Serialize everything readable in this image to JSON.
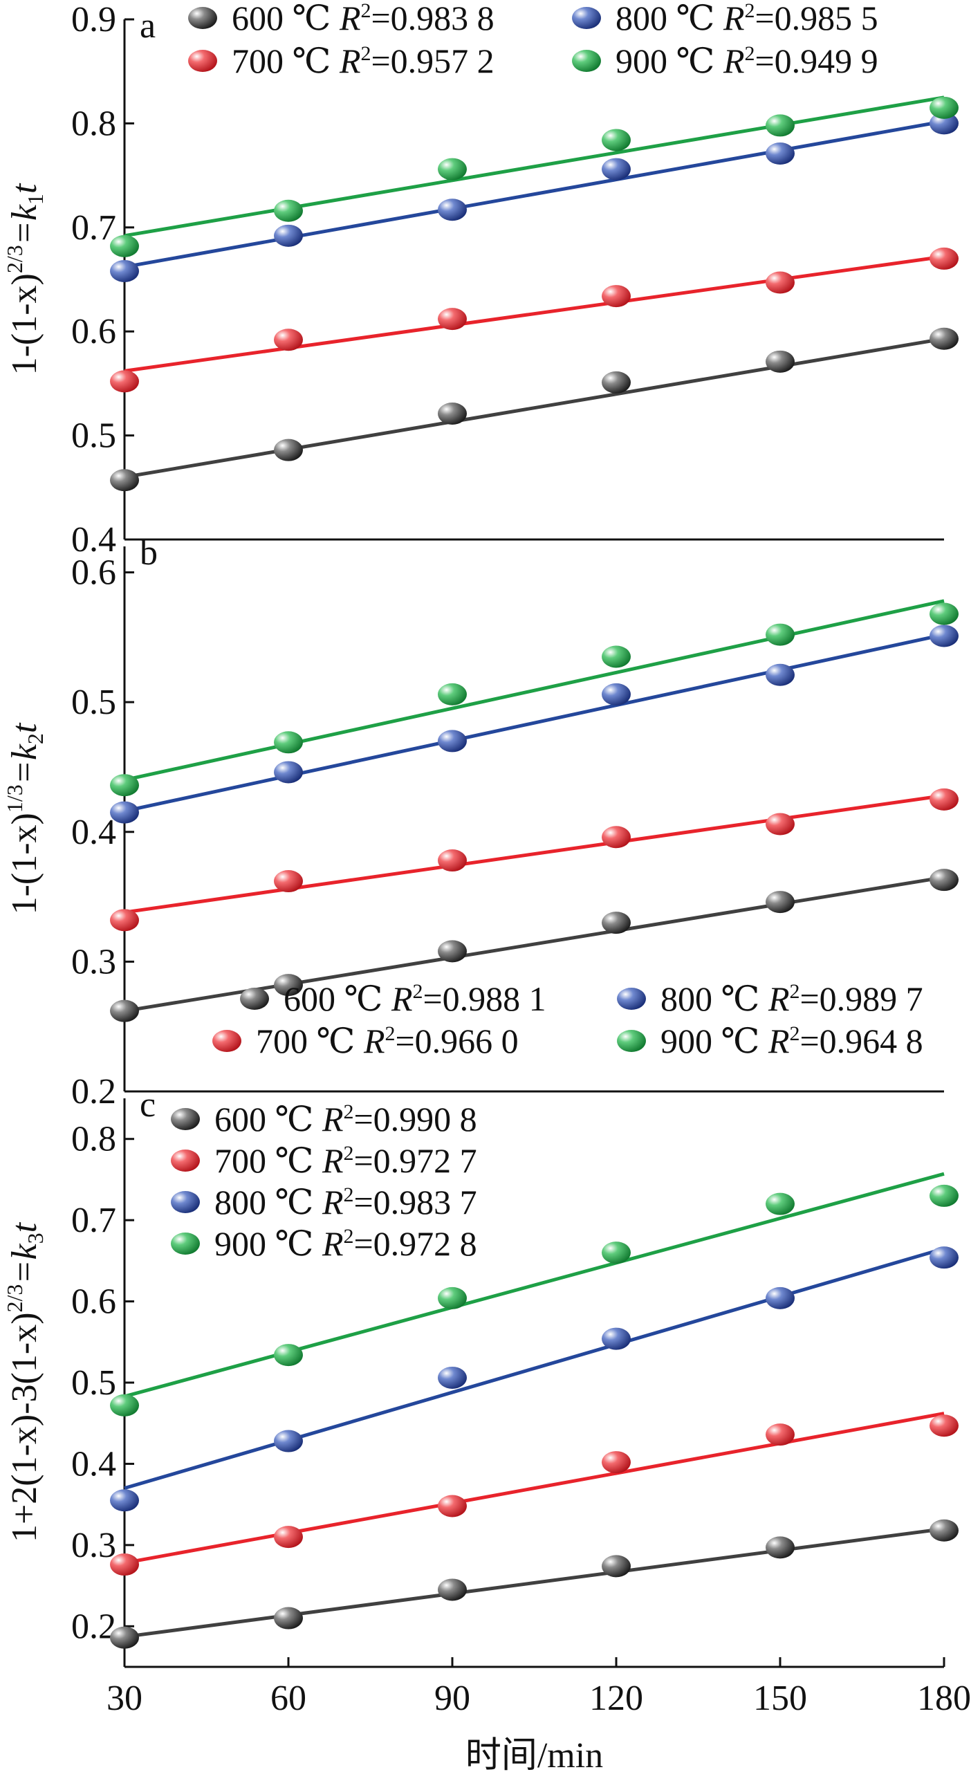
{
  "chart_data": {
    "type": "scatter",
    "xlabel": "时间/min",
    "x": [
      30,
      60,
      90,
      120,
      150,
      180
    ],
    "xticks": [
      "30",
      "60",
      "90",
      "120",
      "150",
      "180"
    ],
    "xlim": [
      30,
      180
    ],
    "colors": {
      "600": "#404040",
      "700": "#e8232b",
      "800": "#24479b",
      "900": "#1ea046"
    },
    "legend_fragments": {
      "celsius": "℃",
      "r_symbol": "R",
      "r_power": "2",
      "equals": "="
    },
    "panels": [
      {
        "id": "a",
        "letter": "a",
        "ylabel": {
          "main": "1-(1-x)",
          "exp": "2/3",
          "eq": "=k",
          "sub": "1",
          "tail": "t"
        },
        "ylim": [
          0.4,
          0.9
        ],
        "yticks": [
          "0.4",
          "0.5",
          "0.6",
          "0.7",
          "0.8",
          "0.9"
        ],
        "legend_position": "top",
        "series": [
          {
            "temp": "600",
            "label": "600 ℃",
            "r2": "0.983 8",
            "values": [
              0.457,
              0.486,
              0.521,
              0.551,
              0.571,
              0.593
            ],
            "fit": [
              0.46,
              0.593
            ]
          },
          {
            "temp": "700",
            "label": "700 ℃",
            "r2": "0.957 2",
            "values": [
              0.552,
              0.592,
              0.612,
              0.634,
              0.647,
              0.67
            ],
            "fit": [
              0.562,
              0.672
            ]
          },
          {
            "temp": "800",
            "label": "800 ℃",
            "r2": "0.985 5",
            "values": [
              0.658,
              0.692,
              0.717,
              0.756,
              0.771,
              0.8
            ],
            "fit": [
              0.662,
              0.802
            ]
          },
          {
            "temp": "900",
            "label": "900 ℃",
            "r2": "0.949 9",
            "values": [
              0.682,
              0.716,
              0.756,
              0.784,
              0.798,
              0.815
            ],
            "fit": [
              0.692,
              0.825
            ]
          }
        ]
      },
      {
        "id": "b",
        "letter": "b",
        "ylabel": {
          "main": "1-(1-x)",
          "exp": "1/3",
          "eq": "=k",
          "sub": "2",
          "tail": "t"
        },
        "ylim": [
          0.2,
          0.62
        ],
        "yticks": [
          "0.2",
          "0.3",
          "0.4",
          "0.5",
          "0.6"
        ],
        "legend_position": "bottom",
        "series": [
          {
            "temp": "600",
            "label": "600 ℃",
            "r2": "0.988 1",
            "values": [
              0.262,
              0.282,
              0.308,
              0.33,
              0.346,
              0.363
            ],
            "fit": [
              0.262,
              0.365
            ]
          },
          {
            "temp": "700",
            "label": "700 ℃",
            "r2": "0.966 0",
            "values": [
              0.332,
              0.362,
              0.378,
              0.396,
              0.406,
              0.425
            ],
            "fit": [
              0.338,
              0.428
            ]
          },
          {
            "temp": "800",
            "label": "800 ℃",
            "r2": "0.989 7",
            "values": [
              0.415,
              0.446,
              0.47,
              0.506,
              0.521,
              0.551
            ],
            "fit": [
              0.416,
              0.552
            ]
          },
          {
            "temp": "900",
            "label": "900 ℃",
            "r2": "0.964 8",
            "values": [
              0.436,
              0.469,
              0.506,
              0.535,
              0.552,
              0.568
            ],
            "fit": [
              0.44,
              0.578
            ]
          }
        ]
      },
      {
        "id": "c",
        "letter": "c",
        "ylabel": {
          "main": "1+2(1-x)-3(1-x)",
          "exp": "2/3",
          "eq": "=k",
          "sub": "3",
          "tail": "t"
        },
        "ylim": [
          0.15,
          0.85
        ],
        "yticks": [
          "0.2",
          "0.3",
          "0.4",
          "0.5",
          "0.6",
          "0.7",
          "0.8"
        ],
        "legend_position": "top-left",
        "series": [
          {
            "temp": "600",
            "label": "600 ℃",
            "r2": "0.990 8",
            "values": [
              0.186,
              0.21,
              0.245,
              0.274,
              0.297,
              0.318
            ],
            "fit": [
              0.187,
              0.32
            ]
          },
          {
            "temp": "700",
            "label": "700 ℃",
            "r2": "0.972 7",
            "values": [
              0.276,
              0.31,
              0.348,
              0.402,
              0.436,
              0.447
            ],
            "fit": [
              0.278,
              0.462
            ]
          },
          {
            "temp": "800",
            "label": "800 ℃",
            "r2": "0.983 7",
            "values": [
              0.355,
              0.428,
              0.506,
              0.554,
              0.604,
              0.654
            ],
            "fit": [
              0.37,
              0.665
            ]
          },
          {
            "temp": "900",
            "label": "900 ℃",
            "r2": "0.972 8",
            "values": [
              0.472,
              0.534,
              0.604,
              0.66,
              0.72,
              0.73
            ],
            "fit": [
              0.483,
              0.757
            ]
          }
        ]
      }
    ]
  }
}
